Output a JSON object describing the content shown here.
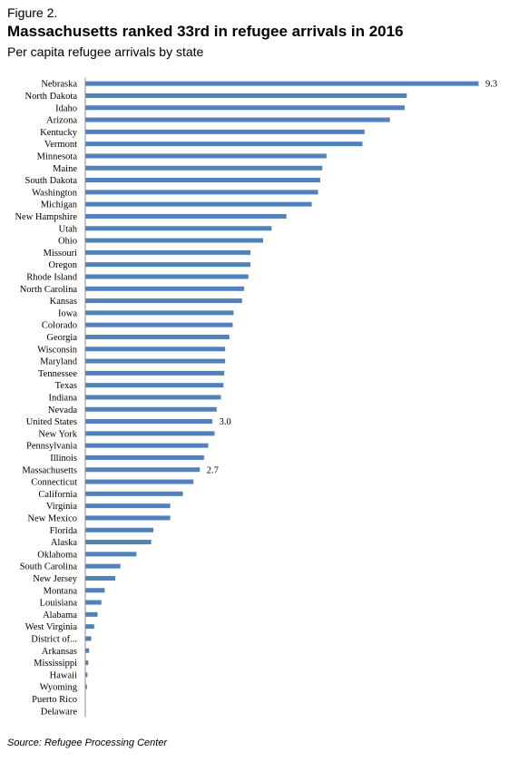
{
  "figure_label": "Figure 2.",
  "title": "Massachusetts ranked 33rd in refugee arrivals in 2016",
  "subtitle": "Per capita refugee arrivals by state",
  "source": "Source: Refugee Processing Center",
  "chart_data": {
    "type": "bar",
    "orientation": "horizontal",
    "title": "Massachusetts ranked 33rd in refugee arrivals in 2016",
    "subtitle": "Per capita refugee arrivals by state",
    "xlabel": "",
    "ylabel": "",
    "xlim": [
      0,
      9.3
    ],
    "grid": false,
    "bar_color": "#4f81bd",
    "categories": [
      "Nebraska",
      "North Dakota",
      "Idaho",
      "Arizona",
      "Kentucky",
      "Vermont",
      "Minnesota",
      "Maine",
      "South Dakota",
      "Washington",
      "Michigan",
      "New Hampshire",
      "Utah",
      "Ohio",
      "Missouri",
      "Oregon",
      "Rhode Island",
      "North Carolina",
      "Kansas",
      "Iowa",
      "Colorado",
      "Georgia",
      "Wisconsin",
      "Maryland",
      "Tennessee",
      "Texas",
      "Indiana",
      "Nevada",
      "United States",
      "New York",
      "Pennsylvania",
      "Illinois",
      "Massachusetts",
      "Connecticut",
      "California",
      "Virginia",
      "New Mexico",
      "Florida",
      "Alaska",
      "Oklahoma",
      "South Carolina",
      "New Jersey",
      "Montana",
      "Louisiana",
      "Alabama",
      "West Virginia",
      "District of...",
      "Arkansas",
      "Mississippi",
      "Hawaii",
      "Wyoming",
      "Puerto Rico",
      "Delaware"
    ],
    "values": [
      9.3,
      7.6,
      7.55,
      7.2,
      6.6,
      6.55,
      5.7,
      5.6,
      5.55,
      5.5,
      5.35,
      4.75,
      4.4,
      4.2,
      3.9,
      3.9,
      3.85,
      3.75,
      3.7,
      3.5,
      3.48,
      3.4,
      3.3,
      3.3,
      3.28,
      3.26,
      3.2,
      3.1,
      3.0,
      3.05,
      2.9,
      2.8,
      2.7,
      2.55,
      2.3,
      2.0,
      2.0,
      1.6,
      1.55,
      1.2,
      0.82,
      0.7,
      0.45,
      0.37,
      0.28,
      0.2,
      0.13,
      0.08,
      0.06,
      0.04,
      0.03,
      0.0,
      0.0
    ],
    "data_labels": [
      {
        "category": "Nebraska",
        "text": "9.3"
      },
      {
        "category": "United States",
        "text": "3.0"
      },
      {
        "category": "Massachusetts",
        "text": "2.7"
      }
    ]
  }
}
